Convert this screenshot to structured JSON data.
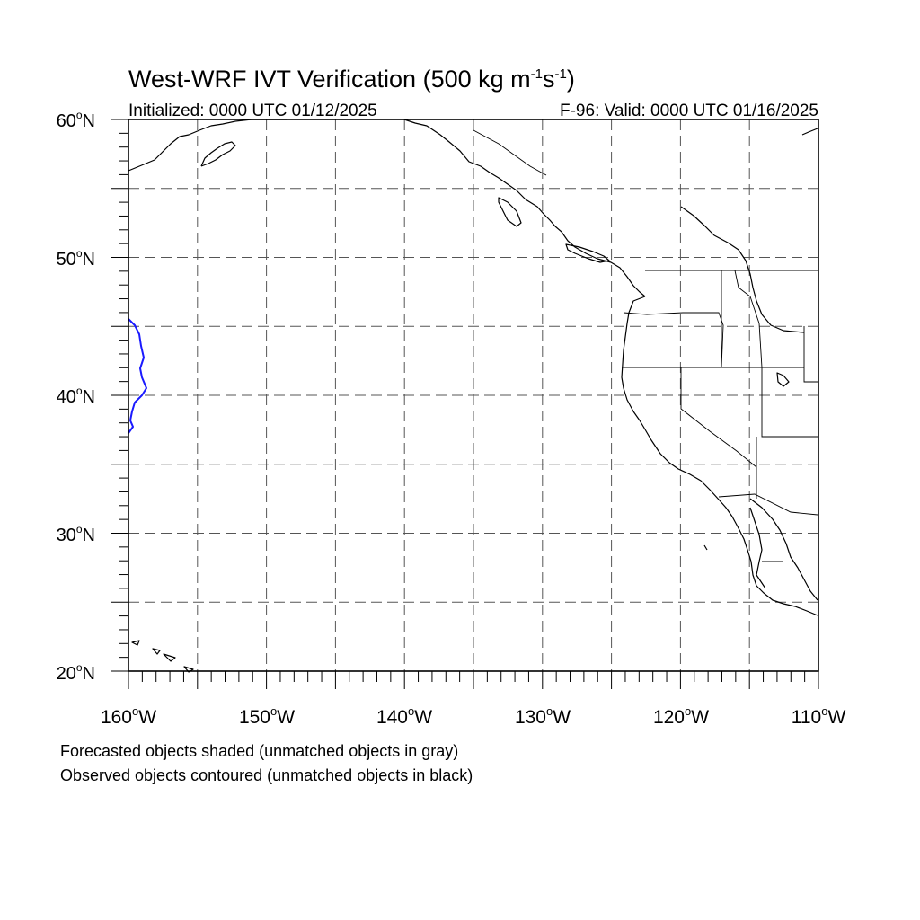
{
  "title": {
    "main": "West-WRF IVT Verification (500 kg m",
    "sup1": "-1",
    "mid": "s",
    "sup2": "-1",
    "end": ")"
  },
  "initialized": "Initialized: 0000 UTC 01/12/2025",
  "valid": "F-96: Valid: 0000 UTC 01/16/2025",
  "lat_labels": [
    {
      "num": "60",
      "deg": "o",
      "hemi": "N"
    },
    {
      "num": "50",
      "deg": "o",
      "hemi": "N"
    },
    {
      "num": "40",
      "deg": "o",
      "hemi": "N"
    },
    {
      "num": "30",
      "deg": "o",
      "hemi": "N"
    },
    {
      "num": "20",
      "deg": "o",
      "hemi": "N"
    }
  ],
  "lon_labels": [
    {
      "num": "160",
      "deg": "o",
      "hemi": "W"
    },
    {
      "num": "150",
      "deg": "o",
      "hemi": "W"
    },
    {
      "num": "140",
      "deg": "o",
      "hemi": "W"
    },
    {
      "num": "130",
      "deg": "o",
      "hemi": "W"
    },
    {
      "num": "120",
      "deg": "o",
      "hemi": "W"
    },
    {
      "num": "110",
      "deg": "o",
      "hemi": "W"
    }
  ],
  "notes": {
    "forecast": "Forecasted objects shaded (unmatched objects in gray)",
    "observed": "Observed objects contoured (unmatched objects in black)"
  },
  "map": {
    "lon_range": [
      -160,
      -110
    ],
    "lat_range": [
      20,
      60
    ],
    "grid_lon_step": 5,
    "grid_lat_step": 5,
    "grid_style": "dashed",
    "observed_object_color": "#1a1aff",
    "coast_color": "#000000"
  }
}
